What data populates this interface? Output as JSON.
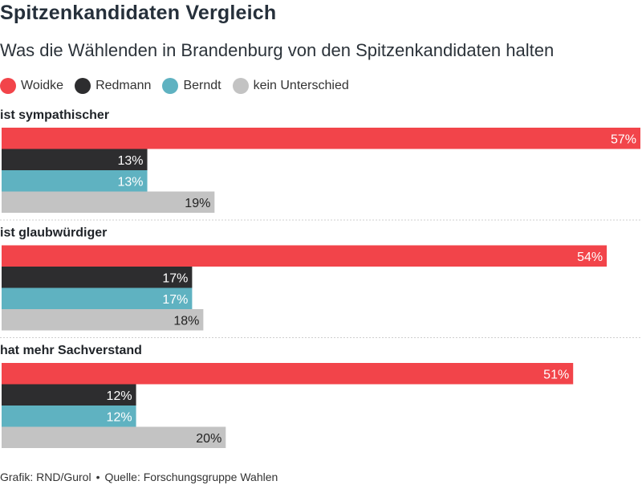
{
  "chart_data": {
    "type": "bar",
    "orientation": "horizontal",
    "title": "Spitzenkandidaten Vergleich",
    "subtitle": "Was die Wählenden in Brandenburg von den Spitzenkandidaten halten",
    "categories": [
      "ist sympathischer",
      "ist glaubwürdiger",
      "hat mehr Sachverstand"
    ],
    "series": [
      {
        "name": "Woidke",
        "values": [
          57,
          54,
          51
        ],
        "color": "#f2444a"
      },
      {
        "name": "Redmann",
        "values": [
          13,
          17,
          12
        ],
        "color": "#2d2d2f"
      },
      {
        "name": "Berndt",
        "values": [
          13,
          17,
          12
        ],
        "color": "#5fb2c1"
      },
      {
        "name": "kein Unterschied",
        "values": [
          19,
          18,
          20
        ],
        "color": "#c3c3c3"
      }
    ],
    "value_suffix": "%",
    "xlim": [
      0,
      57
    ],
    "legend_position": "top-left",
    "grid": false
  },
  "footer": {
    "credit": "Grafik: RND/Gurol",
    "separator": "•",
    "source": "Quelle: Forschungsgruppe Wahlen"
  }
}
